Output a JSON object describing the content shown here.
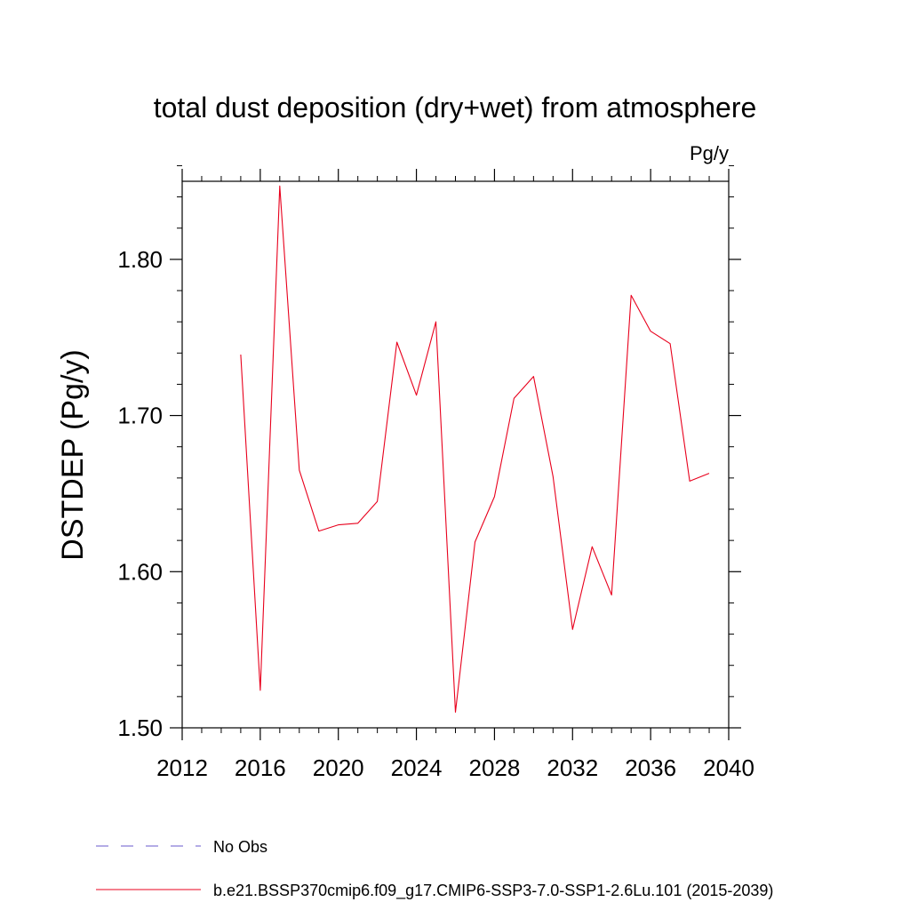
{
  "chart_data": {
    "type": "line",
    "title": "total dust deposition (dry+wet) from atmosphere",
    "units_label": "Pg/y",
    "ylabel": "DSTDEP  (Pg/y)",
    "xlabel": "",
    "xlim": [
      2012,
      2040
    ],
    "ylim": [
      1.5,
      1.85
    ],
    "x_ticks": [
      2012,
      2016,
      2020,
      2024,
      2028,
      2032,
      2036,
      2040
    ],
    "x_tick_labels": [
      "2012",
      "2016",
      "2020",
      "2024",
      "2028",
      "2032",
      "2036",
      "2040"
    ],
    "y_ticks": [
      1.5,
      1.6,
      1.7,
      1.8
    ],
    "y_tick_labels": [
      "1.50",
      "1.60",
      "1.70",
      "1.80"
    ],
    "grid": false,
    "legend_position": "bottom",
    "series": [
      {
        "name": "b.e21.BSSP370cmip6.f09_g17.CMIP6-SSP3-7.0-SSP1-2.6Lu.101 (2015-2039)",
        "color": "#e8001c",
        "dash": "solid",
        "x": [
          2015,
          2016,
          2017,
          2018,
          2019,
          2020,
          2021,
          2022,
          2023,
          2024,
          2025,
          2026,
          2027,
          2028,
          2029,
          2030,
          2031,
          2032,
          2033,
          2034,
          2035,
          2036,
          2037,
          2038,
          2039
        ],
        "values": [
          1.739,
          1.524,
          1.847,
          1.665,
          1.626,
          1.63,
          1.631,
          1.645,
          1.747,
          1.713,
          1.76,
          1.51,
          1.619,
          1.648,
          1.711,
          1.725,
          1.661,
          1.563,
          1.616,
          1.585,
          1.777,
          1.754,
          1.746,
          1.658,
          1.663
        ]
      }
    ],
    "legend": [
      {
        "label": "No Obs",
        "color": "#6a5acd",
        "dash": "dashed"
      },
      {
        "label": "b.e21.BSSP370cmip6.f09_g17.CMIP6-SSP3-7.0-SSP1-2.6Lu.101 (2015-2039)",
        "color": "#e8001c",
        "dash": "solid"
      }
    ]
  }
}
